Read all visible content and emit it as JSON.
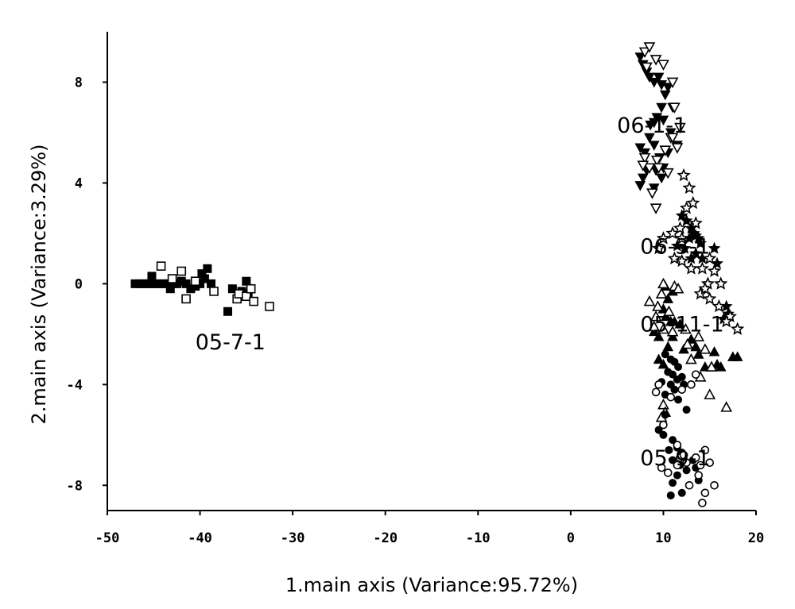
{
  "chart_data": {
    "type": "scatter",
    "xlabel": "1.main axis (Variance:95.72%)",
    "ylabel": "2.main axis (Variance:3.29%)",
    "xlim": [
      -50,
      20
    ],
    "ylim": [
      -9,
      10
    ],
    "xticks": [
      -50,
      -40,
      -30,
      -20,
      -10,
      0,
      10,
      20
    ],
    "yticks": [
      8,
      4,
      0,
      -4,
      -8
    ],
    "grid": false,
    "annotations": [
      {
        "text": "06-1-1",
        "x": 5.0,
        "y": 6.0
      },
      {
        "text": "06-3-1",
        "x": 7.5,
        "y": 1.2
      },
      {
        "text": "05-11-1",
        "x": 7.5,
        "y": -1.9
      },
      {
        "text": "05-7-1",
        "x": -40.5,
        "y": -2.6
      },
      {
        "text": "05-9-1",
        "x": 7.5,
        "y": -7.2
      }
    ],
    "series": [
      {
        "marker": "filled-square",
        "points": [
          [
            -47,
            0
          ],
          [
            -46.5,
            0
          ],
          [
            -46,
            0
          ],
          [
            -45.5,
            0
          ],
          [
            -45.2,
            0.3
          ],
          [
            -45,
            0
          ],
          [
            -44.5,
            0
          ],
          [
            -44,
            0
          ],
          [
            -43.5,
            0
          ],
          [
            -43,
            0
          ],
          [
            -43.2,
            -0.2
          ],
          [
            -42.5,
            0
          ],
          [
            -42,
            0.1
          ],
          [
            -41.5,
            0
          ],
          [
            -41,
            -0.2
          ],
          [
            -40.5,
            -0.1
          ],
          [
            -40,
            0
          ],
          [
            -39.8,
            0.4
          ],
          [
            -39.5,
            0.2
          ],
          [
            -39.2,
            0.6
          ],
          [
            -38.8,
            0
          ],
          [
            -37,
            -1.1
          ],
          [
            -36.5,
            -0.2
          ],
          [
            -35.5,
            -0.3
          ],
          [
            -35,
            0.1
          ],
          [
            -34.8,
            -0.4
          ]
        ]
      },
      {
        "marker": "open-square",
        "points": [
          [
            -44.2,
            0.7
          ],
          [
            -43,
            0.2
          ],
          [
            -42,
            0.5
          ],
          [
            -41.5,
            -0.6
          ],
          [
            -40.5,
            0.1
          ],
          [
            -38.5,
            -0.3
          ],
          [
            -36,
            -0.6
          ],
          [
            -35.8,
            -0.4
          ],
          [
            -35,
            -0.5
          ],
          [
            -34.5,
            -0.2
          ],
          [
            -34.2,
            -0.7
          ],
          [
            -32.5,
            -0.9
          ]
        ]
      },
      {
        "marker": "filled-triangle-down",
        "points": [
          [
            7.5,
            9.0
          ],
          [
            7.8,
            8.7
          ],
          [
            8.2,
            8.4
          ],
          [
            8.5,
            8.2
          ],
          [
            9,
            8.0
          ],
          [
            9.5,
            8.2
          ],
          [
            9.8,
            7.9
          ],
          [
            10.5,
            7.8
          ],
          [
            10.2,
            7.5
          ],
          [
            9.8,
            7.0
          ],
          [
            9.3,
            6.6
          ],
          [
            9,
            6.4
          ],
          [
            8.6,
            6.3
          ],
          [
            10,
            6.5
          ],
          [
            10.8,
            6.0
          ],
          [
            11.5,
            5.5
          ],
          [
            8.5,
            5.8
          ],
          [
            7.5,
            5.4
          ],
          [
            8.0,
            5.2
          ],
          [
            9.0,
            5.5
          ],
          [
            9.6,
            5.0
          ],
          [
            10.0,
            4.6
          ],
          [
            7.8,
            4.2
          ],
          [
            7.5,
            3.9
          ],
          [
            8.2,
            4.5
          ],
          [
            9.2,
            4.5
          ],
          [
            9.8,
            4.2
          ],
          [
            9.0,
            3.8
          ],
          [
            10.5,
            5.2
          ],
          [
            11.0,
            7.0
          ]
        ]
      },
      {
        "marker": "open-triangle-down",
        "points": [
          [
            8,
            9.2
          ],
          [
            8.5,
            9.4
          ],
          [
            9.2,
            8.9
          ],
          [
            8.2,
            8.6
          ],
          [
            10,
            8.7
          ],
          [
            11,
            8.0
          ],
          [
            11.2,
            7.0
          ],
          [
            11.8,
            6.2
          ],
          [
            10.8,
            5.8
          ],
          [
            10.2,
            5.3
          ],
          [
            11.5,
            5.4
          ],
          [
            11.0,
            5.8
          ],
          [
            8.0,
            5.0
          ],
          [
            8.5,
            4.6
          ],
          [
            9.3,
            4.9
          ],
          [
            9.5,
            4.6
          ],
          [
            7.8,
            4.7
          ],
          [
            8.8,
            3.6
          ],
          [
            9.2,
            3.0
          ],
          [
            10.5,
            4.4
          ]
        ]
      },
      {
        "marker": "filled-star",
        "points": [
          [
            12,
            2.7
          ],
          [
            12.5,
            2.5
          ],
          [
            13,
            2.2
          ],
          [
            13.3,
            2.0
          ],
          [
            13.5,
            1.9
          ],
          [
            13.8,
            1.8
          ],
          [
            14,
            1.6
          ],
          [
            12.8,
            1.8
          ],
          [
            12.3,
            1.4
          ],
          [
            13,
            1.0
          ],
          [
            13.5,
            1.2
          ],
          [
            14.2,
            1.0
          ],
          [
            15.5,
            1.4
          ],
          [
            15.8,
            0.8
          ],
          [
            16.8,
            -0.9
          ],
          [
            17,
            -1.2
          ],
          [
            16.5,
            -1.4
          ],
          [
            11.5,
            1.5
          ]
        ]
      },
      {
        "marker": "open-star",
        "points": [
          [
            12.2,
            4.3
          ],
          [
            12.8,
            3.8
          ],
          [
            13.2,
            3.2
          ],
          [
            12.5,
            3.0
          ],
          [
            11.8,
            2.2
          ],
          [
            13.5,
            2.4
          ],
          [
            12.0,
            1.8
          ],
          [
            11.0,
            2.0
          ],
          [
            10.0,
            1.8
          ],
          [
            9.5,
            1.4
          ],
          [
            11.2,
            1.0
          ],
          [
            12.0,
            0.9
          ],
          [
            13.0,
            0.6
          ],
          [
            14.2,
            0.6
          ],
          [
            15.0,
            1.0
          ],
          [
            15.5,
            0.5
          ],
          [
            14.8,
            0.0
          ],
          [
            16.2,
            0.0
          ],
          [
            14.0,
            -0.4
          ],
          [
            15.0,
            -0.6
          ],
          [
            16.0,
            -0.9
          ],
          [
            17.2,
            -1.3
          ],
          [
            18.0,
            -1.8
          ],
          [
            16.8,
            -1.5
          ],
          [
            14.5,
            -0.2
          ]
        ]
      },
      {
        "marker": "filled-triangle-up",
        "points": [
          [
            10.2,
            -0.1
          ],
          [
            11.0,
            -0.3
          ],
          [
            10.5,
            -0.6
          ],
          [
            10.0,
            -1.0
          ],
          [
            10.3,
            -1.3
          ],
          [
            10.8,
            -1.5
          ],
          [
            11.2,
            -1.5
          ],
          [
            11.8,
            -1.6
          ],
          [
            9.0,
            -1.9
          ],
          [
            9.5,
            -2.1
          ],
          [
            10.5,
            -2.5
          ],
          [
            12.2,
            -2.6
          ],
          [
            13.0,
            -2.2
          ],
          [
            13.5,
            -2.5
          ],
          [
            13.8,
            -2.8
          ],
          [
            15.5,
            -2.7
          ],
          [
            15.8,
            -3.2
          ],
          [
            16.2,
            -3.3
          ],
          [
            17.5,
            -2.9
          ],
          [
            18,
            -2.9
          ],
          [
            9.5,
            -3.0
          ],
          [
            10.0,
            -3.2
          ],
          [
            14.5,
            -3.3
          ],
          [
            11,
            -2.1
          ]
        ]
      },
      {
        "marker": "open-triangle-up",
        "points": [
          [
            10.0,
            0.0
          ],
          [
            11.2,
            -0.1
          ],
          [
            9.8,
            -0.4
          ],
          [
            11.6,
            -0.2
          ],
          [
            8.5,
            -0.7
          ],
          [
            9.4,
            -0.9
          ],
          [
            10.6,
            -1.1
          ],
          [
            9.2,
            -1.3
          ],
          [
            9.0,
            -1.7
          ],
          [
            10.0,
            -1.8
          ],
          [
            11.0,
            -1.9
          ],
          [
            12.4,
            -1.8
          ],
          [
            13.8,
            -2.1
          ],
          [
            12.6,
            -2.4
          ],
          [
            14.5,
            -2.6
          ],
          [
            13.0,
            -3.0
          ],
          [
            15.2,
            -3.3
          ],
          [
            14.0,
            -3.7
          ],
          [
            10.0,
            -4.8
          ],
          [
            10.2,
            -5.1
          ],
          [
            15.0,
            -4.4
          ],
          [
            16.8,
            -4.9
          ],
          [
            9.8,
            -5.3
          ]
        ]
      },
      {
        "marker": "filled-circle",
        "points": [
          [
            10.2,
            -2.8
          ],
          [
            10.8,
            -3.0
          ],
          [
            11.2,
            -3.1
          ],
          [
            11.6,
            -3.3
          ],
          [
            10.5,
            -3.5
          ],
          [
            11.0,
            -3.6
          ],
          [
            11.5,
            -3.8
          ],
          [
            12.0,
            -3.7
          ],
          [
            10.8,
            -4.0
          ],
          [
            11.2,
            -4.2
          ],
          [
            12.2,
            -4.0
          ],
          [
            9.8,
            -3.9
          ],
          [
            10.2,
            -4.4
          ],
          [
            11.6,
            -4.6
          ],
          [
            10.2,
            -5.2
          ],
          [
            12.5,
            -5.0
          ],
          [
            9.5,
            -5.8
          ],
          [
            10.0,
            -6.0
          ],
          [
            11.0,
            -6.2
          ],
          [
            11.5,
            -6.5
          ],
          [
            12.0,
            -6.7
          ],
          [
            10.6,
            -6.6
          ],
          [
            11.0,
            -7.0
          ],
          [
            11.8,
            -7.2
          ],
          [
            12.5,
            -7.4
          ],
          [
            13.2,
            -7.0
          ],
          [
            13.5,
            -7.3
          ],
          [
            13.8,
            -7.8
          ],
          [
            11.5,
            -7.6
          ],
          [
            11.0,
            -7.9
          ],
          [
            12.0,
            -8.3
          ],
          [
            10.8,
            -8.4
          ]
        ]
      },
      {
        "marker": "open-circle",
        "points": [
          [
            9.5,
            -4.0
          ],
          [
            9.2,
            -4.3
          ],
          [
            10.8,
            -4.5
          ],
          [
            12.0,
            -4.2
          ],
          [
            13.0,
            -4.0
          ],
          [
            13.5,
            -3.6
          ],
          [
            10.0,
            -5.6
          ],
          [
            11.5,
            -6.4
          ],
          [
            11.8,
            -6.9
          ],
          [
            12.2,
            -6.8
          ],
          [
            13.5,
            -6.9
          ],
          [
            14.5,
            -6.6
          ],
          [
            12.5,
            -7.1
          ],
          [
            14.0,
            -7.2
          ],
          [
            9.8,
            -7.3
          ],
          [
            10.5,
            -7.5
          ],
          [
            15.0,
            -7.1
          ],
          [
            15.5,
            -8.0
          ],
          [
            14.5,
            -8.3
          ],
          [
            14.2,
            -8.7
          ],
          [
            13.8,
            -7.6
          ],
          [
            12.8,
            -8.0
          ],
          [
            11.5,
            -7.2
          ]
        ]
      }
    ]
  }
}
